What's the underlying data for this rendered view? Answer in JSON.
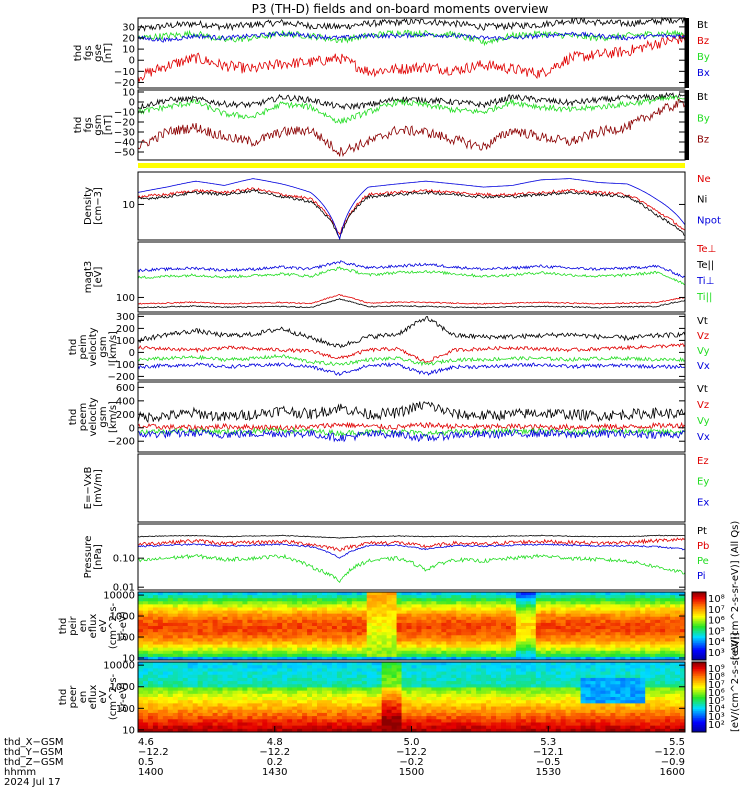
{
  "title": "P3 (TH-D) fields and on-board moments overview",
  "colors": {
    "black": "#000000",
    "red": "#e00000",
    "green": "#22dd22",
    "blue": "#0000dd",
    "darkred": "#8b0000",
    "yellow": "#ffff00"
  },
  "chart_data": [
    {
      "type": "line",
      "ylabel": [
        "thd",
        "fgs",
        "gse",
        "[nT]"
      ],
      "ylim": [
        -25,
        38
      ],
      "ticks": [
        "30",
        "20",
        "10",
        "0",
        "−10",
        "−20"
      ],
      "tick_values": [
        30,
        20,
        10,
        0,
        -10,
        -20
      ],
      "series": [
        {
          "name": "Bt",
          "color": "black",
          "base": [
            28,
            31,
            33,
            30,
            32,
            34,
            31,
            30,
            33,
            34,
            35,
            33,
            30,
            31,
            32,
            36,
            34,
            33,
            35,
            37
          ],
          "noise": 3
        },
        {
          "name": "Bz",
          "color": "red",
          "base": [
            -15,
            -5,
            2,
            -5,
            -8,
            -3,
            -2,
            2,
            -10,
            -8,
            -6,
            -9,
            -4,
            -8,
            -12,
            2,
            5,
            8,
            15,
            20
          ],
          "noise": 5
        },
        {
          "name": "By",
          "color": "green",
          "base": [
            20,
            22,
            24,
            18,
            20,
            24,
            22,
            18,
            22,
            25,
            24,
            23,
            16,
            22,
            24,
            22,
            20,
            22,
            24,
            24
          ],
          "noise": 3
        },
        {
          "name": "Bx",
          "color": "blue",
          "base": [
            20,
            18,
            22,
            20,
            22,
            24,
            22,
            20,
            22,
            22,
            23,
            22,
            20,
            20,
            22,
            24,
            22,
            20,
            22,
            22
          ],
          "noise": 2
        }
      ]
    },
    {
      "type": "line",
      "ylabel": [
        "thd",
        "fgs",
        "gsm",
        "[nT]"
      ],
      "ylim": [
        -58,
        12
      ],
      "ticks": [
        "10",
        "0",
        "−10",
        "−20",
        "−30",
        "−40",
        "−50"
      ],
      "tick_values": [
        10,
        0,
        -10,
        -20,
        -30,
        -40,
        -50
      ],
      "series": [
        {
          "name": "Bt",
          "color": "black",
          "base": [
            -5,
            2,
            3,
            -2,
            -3,
            5,
            2,
            -5,
            -3,
            3,
            2,
            0,
            -3,
            5,
            2,
            -1,
            2,
            4,
            5,
            8
          ],
          "noise": 3
        },
        {
          "name": "By",
          "color": "green",
          "base": [
            -10,
            -5,
            0,
            -12,
            -15,
            -2,
            -5,
            -20,
            -10,
            0,
            -3,
            -8,
            -10,
            0,
            -5,
            -8,
            -5,
            -2,
            2,
            5
          ],
          "noise": 3
        },
        {
          "name": "Bz",
          "color": "darkred",
          "base": [
            -45,
            -30,
            -25,
            -35,
            -40,
            -30,
            -28,
            -50,
            -40,
            -28,
            -30,
            -38,
            -45,
            -28,
            -35,
            -40,
            -30,
            -25,
            -10,
            0
          ],
          "noise": 5
        }
      ]
    },
    {
      "type": "line",
      "ylabel": [
        "Density",
        "[cm−3]"
      ],
      "log": true,
      "ylim": [
        3,
        30
      ],
      "ticks": [
        "10"
      ],
      "tick_values": [
        10
      ],
      "series": [
        {
          "name": "Ne",
          "color": "red",
          "base": [
            13,
            14,
            16,
            15,
            17,
            14,
            12,
            3.5,
            14,
            15,
            16,
            15,
            14,
            14,
            15,
            16,
            15,
            14,
            8,
            4
          ],
          "noise": 0.05
        },
        {
          "name": "Ni",
          "color": "black",
          "base": [
            12,
            13,
            15,
            14,
            16,
            13,
            11,
            3.2,
            13,
            14,
            15,
            14,
            13,
            13,
            14,
            15,
            14,
            13,
            7,
            3.5
          ],
          "noise": 0.05
        },
        {
          "name": "Npot",
          "color": "blue",
          "base": [
            15,
            18,
            22,
            19,
            24,
            20,
            15,
            3,
            18,
            20,
            22,
            20,
            18,
            19,
            23,
            24,
            21,
            20,
            12,
            5
          ],
          "noise": 0
        }
      ]
    },
    {
      "type": "line",
      "ylabel": [
        "magt3",
        "[eV]"
      ],
      "log": true,
      "ylim": [
        60,
        700
      ],
      "ticks": [
        "100"
      ],
      "tick_values": [
        100
      ],
      "series": [
        {
          "name": "Te⊥",
          "color": "red",
          "base": [
            80,
            82,
            85,
            80,
            82,
            84,
            80,
            110,
            82,
            85,
            84,
            82,
            80,
            82,
            84,
            82,
            80,
            82,
            84,
            100
          ],
          "noise": 0.02
        },
        {
          "name": "Te||",
          "color": "black",
          "base": [
            70,
            72,
            74,
            71,
            72,
            73,
            70,
            95,
            72,
            74,
            73,
            71,
            70,
            72,
            73,
            72,
            70,
            72,
            73,
            90
          ],
          "noise": 0.02
        },
        {
          "name": "Ti⊥",
          "color": "blue",
          "base": [
            260,
            270,
            280,
            260,
            270,
            290,
            270,
            350,
            280,
            300,
            320,
            290,
            270,
            280,
            300,
            280,
            270,
            280,
            300,
            200
          ],
          "noise": 0.05
        },
        {
          "name": "Ti||",
          "color": "green",
          "base": [
            200,
            210,
            220,
            205,
            215,
            230,
            210,
            280,
            220,
            240,
            250,
            230,
            210,
            220,
            240,
            220,
            210,
            220,
            240,
            160
          ],
          "noise": 0.05
        }
      ]
    },
    {
      "type": "line",
      "ylabel": [
        "thd",
        "peim",
        "velocity",
        "gsm",
        "[km/s]"
      ],
      "ylim": [
        -230,
        320
      ],
      "ticks": [
        "300",
        "200",
        "100",
        "0",
        "−100",
        "−200"
      ],
      "tick_values": [
        300,
        200,
        100,
        0,
        -100,
        -200
      ],
      "series": [
        {
          "name": "Vt",
          "color": "black",
          "base": [
            100,
            150,
            180,
            140,
            150,
            200,
            120,
            50,
            130,
            150,
            290,
            140,
            130,
            130,
            140,
            150,
            130,
            120,
            140,
            150
          ],
          "noise": 20
        },
        {
          "name": "Vz",
          "color": "red",
          "base": [
            40,
            30,
            20,
            40,
            30,
            20,
            10,
            -50,
            20,
            30,
            -80,
            20,
            30,
            40,
            30,
            20,
            30,
            40,
            50,
            60
          ],
          "noise": 15
        },
        {
          "name": "Vy",
          "color": "green",
          "base": [
            -60,
            -50,
            -40,
            -60,
            -50,
            -30,
            -80,
            -100,
            -60,
            -50,
            -100,
            -60,
            -60,
            -50,
            -50,
            -60,
            -50,
            -50,
            -60,
            -60
          ],
          "noise": 15
        },
        {
          "name": "Vx",
          "color": "blue",
          "base": [
            -120,
            -110,
            -100,
            -120,
            -110,
            -100,
            -120,
            -180,
            -110,
            -100,
            -180,
            -120,
            -120,
            -110,
            -100,
            -120,
            -110,
            -110,
            -120,
            -120
          ],
          "noise": 15
        }
      ]
    },
    {
      "type": "line",
      "ylabel": [
        "thd",
        "peem",
        "velocity",
        "gsm",
        "[km/s]"
      ],
      "ylim": [
        -360,
        680
      ],
      "ticks": [
        "600",
        "400",
        "200",
        "0",
        "−200"
      ],
      "tick_values": [
        600,
        400,
        200,
        0,
        -200
      ],
      "series": [
        {
          "name": "Vt",
          "color": "black",
          "base": [
            150,
            180,
            220,
            160,
            200,
            260,
            200,
            300,
            200,
            220,
            350,
            200,
            180,
            200,
            220,
            200,
            180,
            200,
            220,
            200
          ],
          "noise": 80
        },
        {
          "name": "Vz",
          "color": "red",
          "base": [
            20,
            10,
            0,
            20,
            10,
            0,
            10,
            50,
            20,
            10,
            40,
            20,
            10,
            20,
            10,
            10,
            20,
            10,
            30,
            40
          ],
          "noise": 40
        },
        {
          "name": "Vy",
          "color": "green",
          "base": [
            -60,
            -50,
            -40,
            -60,
            -50,
            -40,
            -50,
            -80,
            -60,
            -50,
            -90,
            -60,
            -60,
            -50,
            -50,
            -60,
            -50,
            -50,
            -60,
            -60
          ],
          "noise": 40
        },
        {
          "name": "Vx",
          "color": "blue",
          "base": [
            -100,
            -90,
            -80,
            -100,
            -90,
            -80,
            -90,
            -150,
            -100,
            -90,
            -160,
            -100,
            -100,
            -90,
            -80,
            -100,
            -90,
            -90,
            -100,
            -100
          ],
          "noise": 60
        }
      ]
    },
    {
      "type": "line",
      "ylabel": [
        "E=−VxB",
        "[mV/m]"
      ],
      "ylim": [
        -1,
        1
      ],
      "ticks": [],
      "tick_values": [],
      "series": [
        {
          "name": "Ez",
          "color": "red",
          "base": [],
          "noise": 0
        },
        {
          "name": "Ey",
          "color": "green",
          "base": [],
          "noise": 0
        },
        {
          "name": "Ex",
          "color": "blue",
          "base": [],
          "noise": 0
        }
      ]
    },
    {
      "type": "line",
      "ylabel": [
        "Pressure",
        "[nPa]"
      ],
      "log": true,
      "ylim": [
        0.008,
        1.5
      ],
      "ticks": [
        "0.10",
        "0.01"
      ],
      "tick_values": [
        0.1,
        0.01
      ],
      "series": [
        {
          "name": "Pt",
          "color": "black",
          "base": [
            0.55,
            0.58,
            0.6,
            0.55,
            0.58,
            0.6,
            0.55,
            0.5,
            0.55,
            0.58,
            0.55,
            0.57,
            0.55,
            0.58,
            0.6,
            0.57,
            0.55,
            0.56,
            0.6,
            0.6
          ],
          "noise": 0.03
        },
        {
          "name": "Pb",
          "color": "red",
          "base": [
            0.3,
            0.35,
            0.4,
            0.32,
            0.35,
            0.38,
            0.3,
            0.2,
            0.33,
            0.35,
            0.25,
            0.33,
            0.3,
            0.35,
            0.38,
            0.35,
            0.33,
            0.35,
            0.4,
            0.45
          ],
          "noise": 0.15
        },
        {
          "name": "Pe",
          "color": "green",
          "base": [
            0.08,
            0.1,
            0.12,
            0.09,
            0.1,
            0.12,
            0.05,
            0.015,
            0.08,
            0.1,
            0.04,
            0.09,
            0.08,
            0.1,
            0.12,
            0.1,
            0.09,
            0.08,
            0.05,
            0.03
          ],
          "noise": 0.15
        },
        {
          "name": "Pi",
          "color": "blue",
          "base": [
            0.25,
            0.28,
            0.3,
            0.26,
            0.28,
            0.3,
            0.25,
            0.1,
            0.27,
            0.28,
            0.2,
            0.27,
            0.26,
            0.28,
            0.3,
            0.28,
            0.26,
            0.27,
            0.25,
            0.2
          ],
          "noise": 0.06
        }
      ]
    },
    {
      "type": "heatmap",
      "ylabel": [
        "thd",
        "peir",
        "en",
        "eflux",
        "eV",
        "(cm^2-s-",
        "sr-eV)"
      ],
      "log": true,
      "ylim": [
        8,
        14000
      ],
      "ticks": [
        "10000",
        "1000",
        "100",
        "10"
      ],
      "tick_values": [
        10000,
        1000,
        100,
        10
      ],
      "colorbar": {
        "ticks": [
          "10⁸",
          "10⁷",
          "10⁶",
          "10⁵",
          "10⁴",
          "10³"
        ],
        "label": "[eV/(cm^2-s-sr-eV)] (All Qs)"
      }
    },
    {
      "type": "heatmap",
      "ylabel": [
        "thd",
        "peer",
        "en",
        "eflux",
        "eV",
        "(cm^2-s-",
        "sr-eV)"
      ],
      "log": true,
      "ylim": [
        8,
        14000
      ],
      "ticks": [
        "10000",
        "1000",
        "100",
        "10"
      ],
      "tick_values": [
        10000,
        1000,
        100,
        10
      ],
      "colorbar": {
        "ticks": [
          "10⁹",
          "10⁸",
          "10⁷",
          "10⁶",
          "10⁵",
          "10⁴",
          "10³",
          "10²"
        ],
        "label": "[eV/(cm^2-s-sr-eV)]"
      }
    }
  ],
  "x_axis": {
    "rows": [
      {
        "label": "thd_X−GSM",
        "values": [
          "4.6",
          "4.8",
          "5.0",
          "5.3",
          "5.5"
        ]
      },
      {
        "label": "thd_Y−GSM",
        "values": [
          "−12.2",
          "−12.2",
          "−12.2",
          "−12.1",
          "−12.0"
        ]
      },
      {
        "label": "thd_Z−GSM",
        "values": [
          "0.5",
          "0.2",
          "−0.2",
          "−0.5",
          "−0.9"
        ]
      },
      {
        "label": "hhmm",
        "values": [
          "1400",
          "1430",
          "1500",
          "1530",
          "1600"
        ]
      }
    ],
    "date": "2024 Jul 17"
  }
}
